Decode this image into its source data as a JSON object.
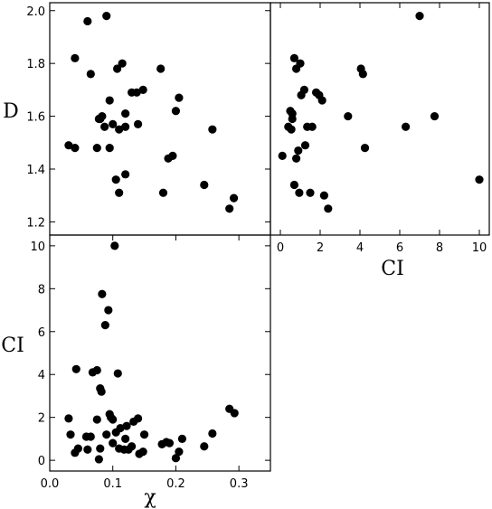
{
  "chart_data": [
    {
      "type": "scatter",
      "panel": "top-left",
      "xlabel": "",
      "ylabel": "D",
      "xlim": [
        0.0,
        0.35
      ],
      "ylim": [
        1.15,
        2.03
      ],
      "x_ticks": [],
      "y_ticks": [
        "1.2",
        "1.4",
        "1.6",
        "1.8",
        "2.0"
      ],
      "y_tick_values": [
        1.2,
        1.4,
        1.6,
        1.8,
        2.0
      ],
      "points": [
        [
          0.03,
          1.49
        ],
        [
          0.04,
          1.48
        ],
        [
          0.04,
          1.82
        ],
        [
          0.06,
          1.96
        ],
        [
          0.065,
          1.76
        ],
        [
          0.075,
          1.48
        ],
        [
          0.078,
          1.59
        ],
        [
          0.08,
          1.59
        ],
        [
          0.083,
          1.6
        ],
        [
          0.087,
          1.56
        ],
        [
          0.09,
          1.98
        ],
        [
          0.095,
          1.48
        ],
        [
          0.095,
          1.66
        ],
        [
          0.1,
          1.57
        ],
        [
          0.105,
          1.36
        ],
        [
          0.107,
          1.78
        ],
        [
          0.11,
          1.55
        ],
        [
          0.11,
          1.31
        ],
        [
          0.115,
          1.8
        ],
        [
          0.12,
          1.38
        ],
        [
          0.12,
          1.56
        ],
        [
          0.12,
          1.61
        ],
        [
          0.13,
          1.69
        ],
        [
          0.138,
          1.69
        ],
        [
          0.14,
          1.57
        ],
        [
          0.148,
          1.7
        ],
        [
          0.176,
          1.78
        ],
        [
          0.18,
          1.31
        ],
        [
          0.188,
          1.44
        ],
        [
          0.195,
          1.45
        ],
        [
          0.2,
          1.62
        ],
        [
          0.205,
          1.67
        ],
        [
          0.245,
          1.34
        ],
        [
          0.258,
          1.55
        ],
        [
          0.285,
          1.25
        ],
        [
          0.292,
          1.29
        ]
      ]
    },
    {
      "type": "scatter",
      "panel": "top-right",
      "xlabel": "CI",
      "ylabel": "",
      "xlim": [
        -0.5,
        10.5
      ],
      "ylim": [
        1.15,
        2.03
      ],
      "x_ticks": [
        "0",
        "2",
        "4",
        "6",
        "8",
        "10"
      ],
      "x_tick_values": [
        0,
        2,
        4,
        6,
        8,
        10
      ],
      "y_ticks": [],
      "points": [
        [
          0.1,
          1.45
        ],
        [
          0.4,
          1.56
        ],
        [
          0.5,
          1.62
        ],
        [
          0.55,
          1.55
        ],
        [
          0.6,
          1.61
        ],
        [
          0.6,
          1.59
        ],
        [
          0.7,
          1.82
        ],
        [
          0.7,
          1.34
        ],
        [
          0.8,
          1.78
        ],
        [
          0.8,
          1.44
        ],
        [
          0.9,
          1.47
        ],
        [
          0.95,
          1.31
        ],
        [
          1.0,
          1.8
        ],
        [
          1.05,
          1.68
        ],
        [
          1.2,
          1.7
        ],
        [
          1.25,
          1.49
        ],
        [
          1.35,
          1.56
        ],
        [
          1.5,
          1.31
        ],
        [
          1.6,
          1.56
        ],
        [
          1.8,
          1.69
        ],
        [
          1.95,
          1.68
        ],
        [
          2.1,
          1.66
        ],
        [
          2.2,
          1.3
        ],
        [
          2.4,
          1.25
        ],
        [
          3.4,
          1.6
        ],
        [
          4.05,
          1.78
        ],
        [
          4.15,
          1.76
        ],
        [
          4.25,
          1.48
        ],
        [
          6.3,
          1.56
        ],
        [
          7.0,
          1.98
        ],
        [
          7.75,
          1.6
        ],
        [
          10.0,
          1.36
        ]
      ]
    },
    {
      "type": "scatter",
      "panel": "bottom-left",
      "xlabel": "χ",
      "ylabel": "CI",
      "xlim": [
        0.0,
        0.35
      ],
      "ylim": [
        -0.5,
        10.5
      ],
      "x_ticks": [
        "0.0",
        "0.1",
        "0.2",
        "0.3"
      ],
      "x_tick_values": [
        0.0,
        0.1,
        0.2,
        0.3
      ],
      "y_ticks": [
        "0",
        "2",
        "4",
        "6",
        "8",
        "10"
      ],
      "y_tick_values": [
        0,
        2,
        4,
        6,
        8,
        10
      ],
      "points": [
        [
          0.03,
          1.95
        ],
        [
          0.033,
          1.2
        ],
        [
          0.04,
          0.35
        ],
        [
          0.045,
          0.55
        ],
        [
          0.042,
          4.25
        ],
        [
          0.058,
          1.1
        ],
        [
          0.06,
          0.5
        ],
        [
          0.065,
          1.1
        ],
        [
          0.068,
          4.1
        ],
        [
          0.075,
          4.2
        ],
        [
          0.075,
          1.9
        ],
        [
          0.078,
          0.05
        ],
        [
          0.08,
          0.55
        ],
        [
          0.08,
          3.35
        ],
        [
          0.082,
          3.2
        ],
        [
          0.083,
          7.75
        ],
        [
          0.088,
          6.3
        ],
        [
          0.09,
          1.2
        ],
        [
          0.093,
          7.0
        ],
        [
          0.095,
          2.15
        ],
        [
          0.097,
          2.0
        ],
        [
          0.1,
          0.8
        ],
        [
          0.1,
          1.9
        ],
        [
          0.103,
          10.0
        ],
        [
          0.105,
          1.3
        ],
        [
          0.108,
          4.05
        ],
        [
          0.11,
          0.55
        ],
        [
          0.112,
          1.5
        ],
        [
          0.118,
          0.5
        ],
        [
          0.12,
          1.0
        ],
        [
          0.122,
          1.6
        ],
        [
          0.125,
          0.5
        ],
        [
          0.13,
          0.65
        ],
        [
          0.133,
          1.8
        ],
        [
          0.14,
          1.95
        ],
        [
          0.142,
          0.3
        ],
        [
          0.148,
          0.4
        ],
        [
          0.15,
          1.2
        ],
        [
          0.178,
          0.75
        ],
        [
          0.185,
          0.85
        ],
        [
          0.19,
          0.8
        ],
        [
          0.2,
          0.1
        ],
        [
          0.205,
          0.4
        ],
        [
          0.21,
          1.0
        ],
        [
          0.245,
          0.65
        ],
        [
          0.258,
          1.25
        ],
        [
          0.285,
          2.4
        ],
        [
          0.293,
          2.2
        ]
      ]
    }
  ]
}
